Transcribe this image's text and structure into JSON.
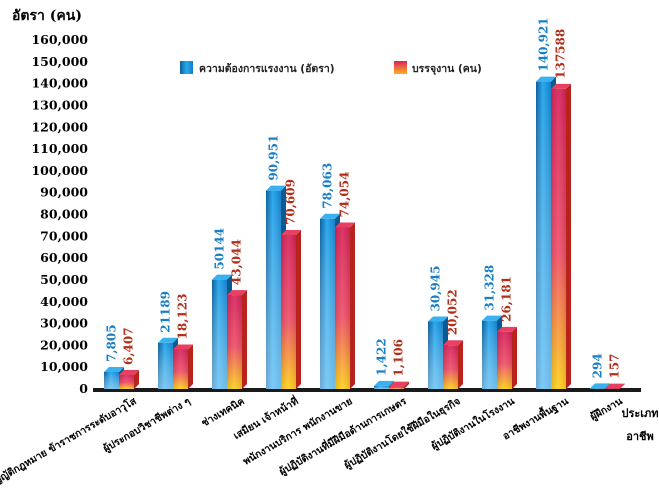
{
  "chart_data": {
    "type": "bar",
    "ylabel": "อัตรา (คน)",
    "xlabel_lines": [
      "ประเภท",
      "อาชีพ"
    ],
    "ylim": [
      0,
      160000
    ],
    "yticks": [
      "0",
      "10,000",
      "20,000",
      "30,000",
      "40,000",
      "50,000",
      "60,000",
      "70,000",
      "80,000",
      "90,000",
      "100,000",
      "110,000",
      "120,000",
      "130,000",
      "140,000",
      "150,000",
      "160,000"
    ],
    "legend_position": "top-center",
    "categories": [
      "ผู้บัญญัติกฎหมาย ข้าราชการระดับอาวุโส",
      "ผู้ประกอบวิชาชีพต่าง ๆ",
      "ช่างเทคนิค",
      "เสมียน เจ้าหน้าที่",
      "พนักงานบริการ พนักงานขาย",
      "ผู้ปฏิบัติงานที่มีฝีมือด้านการเกษตร",
      "ผู้ปฏิบัติงานโดยใช้ฝีมือในธุรกิจ",
      "ผู้ปฏิบัติงานในโรงงาน",
      "อาชีพงานพื้นฐาน",
      "ผู้ฝึกงาน"
    ],
    "series": [
      {
        "name": "ความต้องการแรงงาน (อัตรา)",
        "color": "#1a8fd6",
        "values": [
          7805,
          21189,
          50144,
          90951,
          78063,
          1422,
          30945,
          31328,
          140921,
          294
        ],
        "labels": [
          "7,805",
          "21189",
          "50144",
          "90,951",
          "78,063",
          "1,422",
          "30,945",
          "31,328",
          "140,921",
          "294"
        ]
      },
      {
        "name": "บรรจุงาน (คน)",
        "color": "#e0306a",
        "values": [
          6407,
          18123,
          43044,
          70609,
          74054,
          1106,
          20052,
          26181,
          137588,
          157
        ],
        "labels": [
          "6,407",
          "18,123",
          "43,044",
          "70,609",
          "74,054",
          "1,106",
          "20,052",
          "26,181",
          "137588",
          "157"
        ]
      }
    ]
  }
}
